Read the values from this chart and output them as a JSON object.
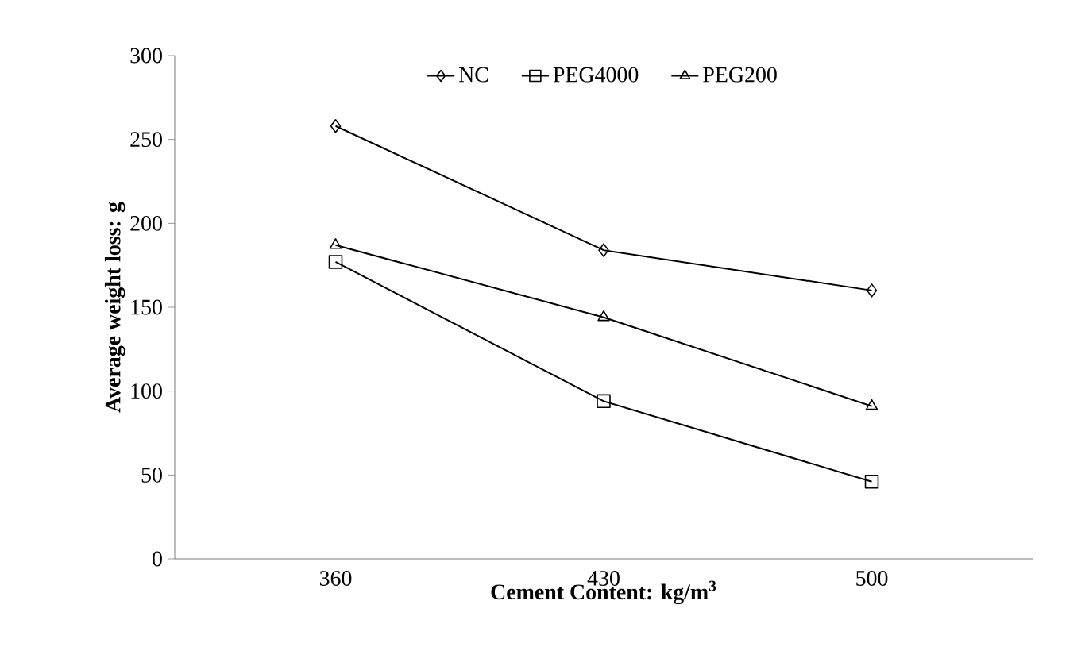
{
  "chart_data": {
    "type": "line",
    "xlabel": "Cement Content: kg/m$^{3}$",
    "ylabel": "Average weight loss: g",
    "categories": [
      "360",
      "430",
      "500"
    ],
    "series": [
      {
        "name": "NC",
        "color": "#000000",
        "marker": "diamond",
        "values": [
          258,
          184,
          160
        ]
      },
      {
        "name": "PEG4000",
        "color": "#000000",
        "marker": "square",
        "values": [
          177,
          94,
          46
        ]
      },
      {
        "name": "PEG200",
        "color": "#000000",
        "marker": "triangle",
        "values": [
          187,
          144,
          91
        ]
      }
    ],
    "ylim": [
      0,
      300
    ],
    "yticks": [
      0,
      50,
      100,
      150,
      200,
      250,
      300
    ],
    "grid": false,
    "legend": "top",
    "line_style": "solid"
  }
}
